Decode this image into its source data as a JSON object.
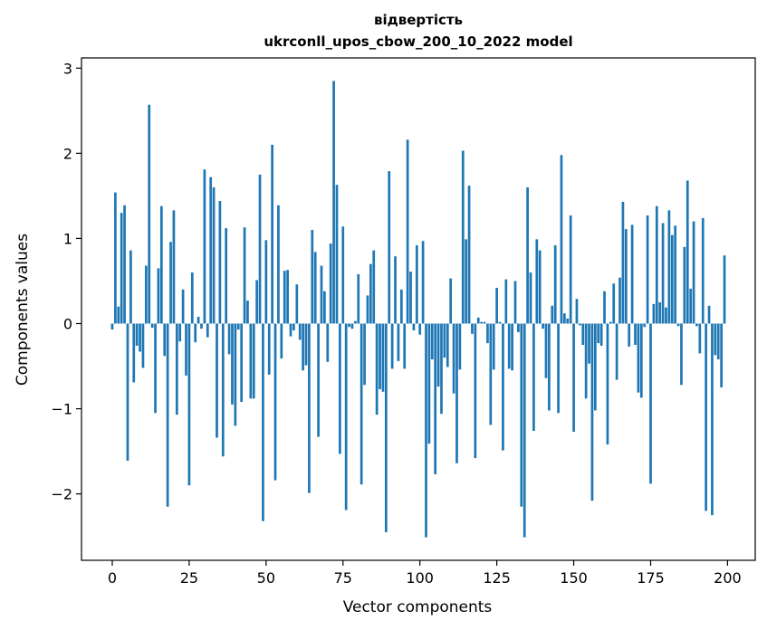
{
  "chart_data": {
    "type": "bar",
    "title_line1": "відвертість",
    "title_line2": "ukrconll_upos_cbow_200_10_2022 model",
    "xlabel": "Vector components",
    "ylabel": "Components values",
    "xlim": [
      -10,
      209
    ],
    "ylim": [
      -2.78,
      3.12
    ],
    "xticks": [
      0,
      25,
      50,
      75,
      100,
      125,
      150,
      175,
      200
    ],
    "xtick_labels": [
      "0",
      "25",
      "50",
      "75",
      "100",
      "125",
      "150",
      "175",
      "200"
    ],
    "yticks": [
      -2,
      -1,
      0,
      1,
      2,
      3
    ],
    "ytick_labels": [
      "−2",
      "−1",
      "0",
      "1",
      "2",
      "3"
    ],
    "color": "#1f77b4",
    "x": [
      0,
      1,
      2,
      3,
      4,
      5,
      6,
      7,
      8,
      9,
      10,
      11,
      12,
      13,
      14,
      15,
      16,
      17,
      18,
      19,
      20,
      21,
      22,
      23,
      24,
      25,
      26,
      27,
      28,
      29,
      30,
      31,
      32,
      33,
      34,
      35,
      36,
      37,
      38,
      39,
      40,
      41,
      42,
      43,
      44,
      45,
      46,
      47,
      48,
      49,
      50,
      51,
      52,
      53,
      54,
      55,
      56,
      57,
      58,
      59,
      60,
      61,
      62,
      63,
      64,
      65,
      66,
      67,
      68,
      69,
      70,
      71,
      72,
      73,
      74,
      75,
      76,
      77,
      78,
      79,
      80,
      81,
      82,
      83,
      84,
      85,
      86,
      87,
      88,
      89,
      90,
      91,
      92,
      93,
      94,
      95,
      96,
      97,
      98,
      99,
      100,
      101,
      102,
      103,
      104,
      105,
      106,
      107,
      108,
      109,
      110,
      111,
      112,
      113,
      114,
      115,
      116,
      117,
      118,
      119,
      120,
      121,
      122,
      123,
      124,
      125,
      126,
      127,
      128,
      129,
      130,
      131,
      132,
      133,
      134,
      135,
      136,
      137,
      138,
      139,
      140,
      141,
      142,
      143,
      144,
      145,
      146,
      147,
      148,
      149,
      150,
      151,
      152,
      153,
      154,
      155,
      156,
      157,
      158,
      159,
      160,
      161,
      162,
      163,
      164,
      165,
      166,
      167,
      168,
      169,
      170,
      171,
      172,
      173,
      174,
      175,
      176,
      177,
      178,
      179,
      180,
      181,
      182,
      183,
      184,
      185,
      186,
      187,
      188,
      189,
      190,
      191,
      192,
      193,
      194,
      195,
      196,
      197,
      198,
      199
    ],
    "values": [
      -0.07,
      1.54,
      0.2,
      1.3,
      1.39,
      -1.61,
      0.86,
      -0.69,
      -0.26,
      -0.33,
      -0.52,
      0.68,
      2.57,
      -0.05,
      -1.05,
      0.65,
      1.38,
      -0.38,
      -2.15,
      0.96,
      1.33,
      -1.07,
      -0.21,
      0.4,
      -0.61,
      -1.9,
      0.6,
      -0.22,
      0.08,
      -0.06,
      1.81,
      -0.16,
      1.72,
      1.6,
      -1.34,
      1.44,
      -1.56,
      1.12,
      -0.36,
      -0.95,
      -1.2,
      -0.07,
      -0.92,
      1.13,
      0.27,
      -0.88,
      -0.88,
      0.51,
      1.75,
      -2.32,
      0.98,
      -0.6,
      2.1,
      -1.84,
      1.39,
      -0.41,
      0.62,
      0.63,
      -0.15,
      -0.08,
      0.46,
      -0.19,
      -0.55,
      -0.49,
      -1.99,
      1.1,
      0.84,
      -1.33,
      0.68,
      0.38,
      -0.45,
      0.94,
      2.85,
      1.63,
      -1.53,
      1.14,
      -2.19,
      -0.04,
      -0.06,
      0.03,
      0.58,
      -1.89,
      -0.72,
      0.33,
      0.7,
      0.86,
      -1.07,
      -0.77,
      -0.8,
      -2.45,
      1.79,
      -0.53,
      0.79,
      -0.44,
      0.4,
      -0.53,
      2.16,
      0.61,
      -0.08,
      0.92,
      -0.13,
      0.97,
      -2.51,
      -1.41,
      -0.42,
      -1.77,
      -0.74,
      -1.06,
      -0.4,
      -0.51,
      0.53,
      -0.82,
      -1.64,
      -0.54,
      2.03,
      0.99,
      1.62,
      -0.12,
      -1.58,
      0.07,
      0.02,
      0.02,
      -0.23,
      -1.19,
      -0.54,
      0.42,
      0.02,
      -1.49,
      0.52,
      -0.53,
      -0.55,
      0.5,
      -0.1,
      -2.15,
      -2.51,
      1.6,
      0.6,
      -1.26,
      0.99,
      0.86,
      -0.06,
      -0.64,
      -1.02,
      0.21,
      0.92,
      -1.05,
      1.98,
      0.12,
      0.06,
      1.27,
      -1.27,
      0.29,
      -0.02,
      -0.25,
      -0.88,
      -0.47,
      -2.08,
      -1.02,
      -0.23,
      -0.26,
      0.38,
      -1.42,
      0.02,
      0.47,
      -0.66,
      0.54,
      1.43,
      1.11,
      -0.27,
      1.16,
      -0.25,
      -0.81,
      -0.87,
      -0.04,
      1.27,
      -1.88,
      0.23,
      1.38,
      0.25,
      1.18,
      0.19,
      1.33,
      1.04,
      1.15,
      -0.03,
      -0.72,
      0.9,
      1.68,
      0.41,
      1.2,
      -0.03,
      -0.35,
      1.24,
      -2.2,
      0.21,
      -2.25,
      -0.37,
      -0.42,
      -0.75,
      0.8
    ]
  }
}
